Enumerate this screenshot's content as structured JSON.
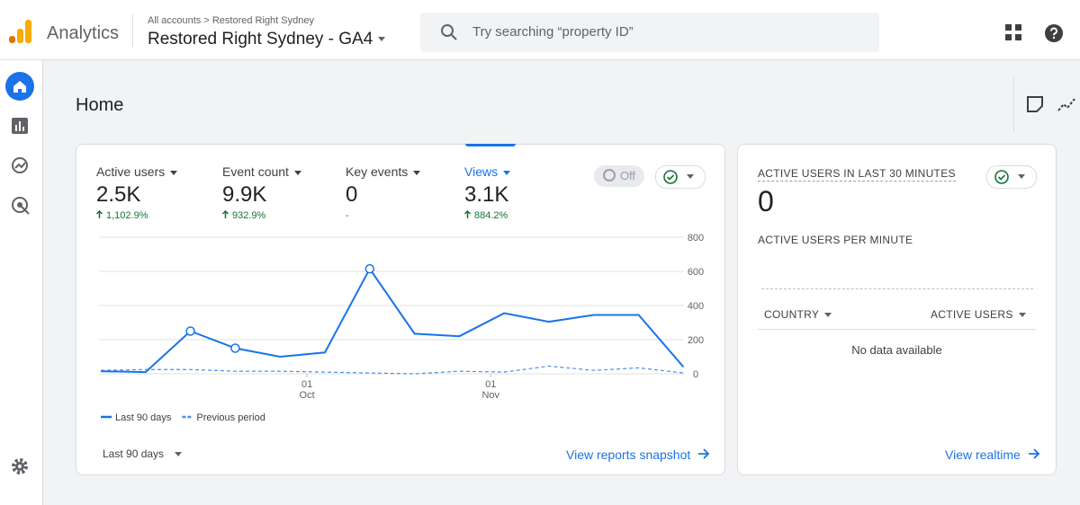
{
  "header": {
    "app_name": "Analytics",
    "breadcrumb": [
      "All accounts",
      "Restored Right Sydney"
    ],
    "property": "Restored Right Sydney - GA4",
    "search_placeholder": "Try searching “property ID”"
  },
  "page_title": "Home",
  "metrics": [
    {
      "label": "Active users",
      "value": "2.5K",
      "change": "1,102.9%"
    },
    {
      "label": "Event count",
      "value": "9.9K",
      "change": "932.9%"
    },
    {
      "label": "Key events",
      "value": "0",
      "change": "-"
    },
    {
      "label": "Views",
      "value": "3.1K",
      "change": "884.2%"
    }
  ],
  "toggle": "Off",
  "date_range": "Last 90 days",
  "report_link": "View reports snapshot",
  "realtime": {
    "title": "ACTIVE USERS IN LAST 30 MINUTES",
    "value": "0",
    "subtitle": "ACTIVE USERS PER MINUTE",
    "columns": [
      "COUNTRY",
      "ACTIVE USERS"
    ],
    "empty": "No data available",
    "link": "View realtime"
  },
  "chart_data": {
    "type": "line",
    "categories": [
      null,
      null,
      null,
      null,
      null,
      null,
      null,
      null,
      null,
      null,
      null,
      null,
      null,
      null
    ],
    "series": [
      {
        "name": "Last 90 days",
        "color": "#1a73e8",
        "dash": false,
        "values": [
          15,
          10,
          250,
          150,
          100,
          125,
          615,
          235,
          220,
          355,
          305,
          345,
          345,
          40
        ]
      },
      {
        "name": "Previous period",
        "color": "#4a8fe7",
        "dash": true,
        "values": [
          20,
          25,
          25,
          15,
          15,
          10,
          5,
          0,
          15,
          10,
          45,
          20,
          35,
          5
        ]
      }
    ],
    "markers": [
      2,
      3,
      6
    ],
    "xticks": [
      {
        "value": 4.6,
        "day": "01",
        "month": "Oct"
      },
      {
        "value": 8.7,
        "day": "01",
        "month": "Nov"
      }
    ],
    "ylim": [
      0,
      800
    ],
    "yticks": [
      0,
      200,
      400,
      600,
      800
    ],
    "grid": true
  }
}
